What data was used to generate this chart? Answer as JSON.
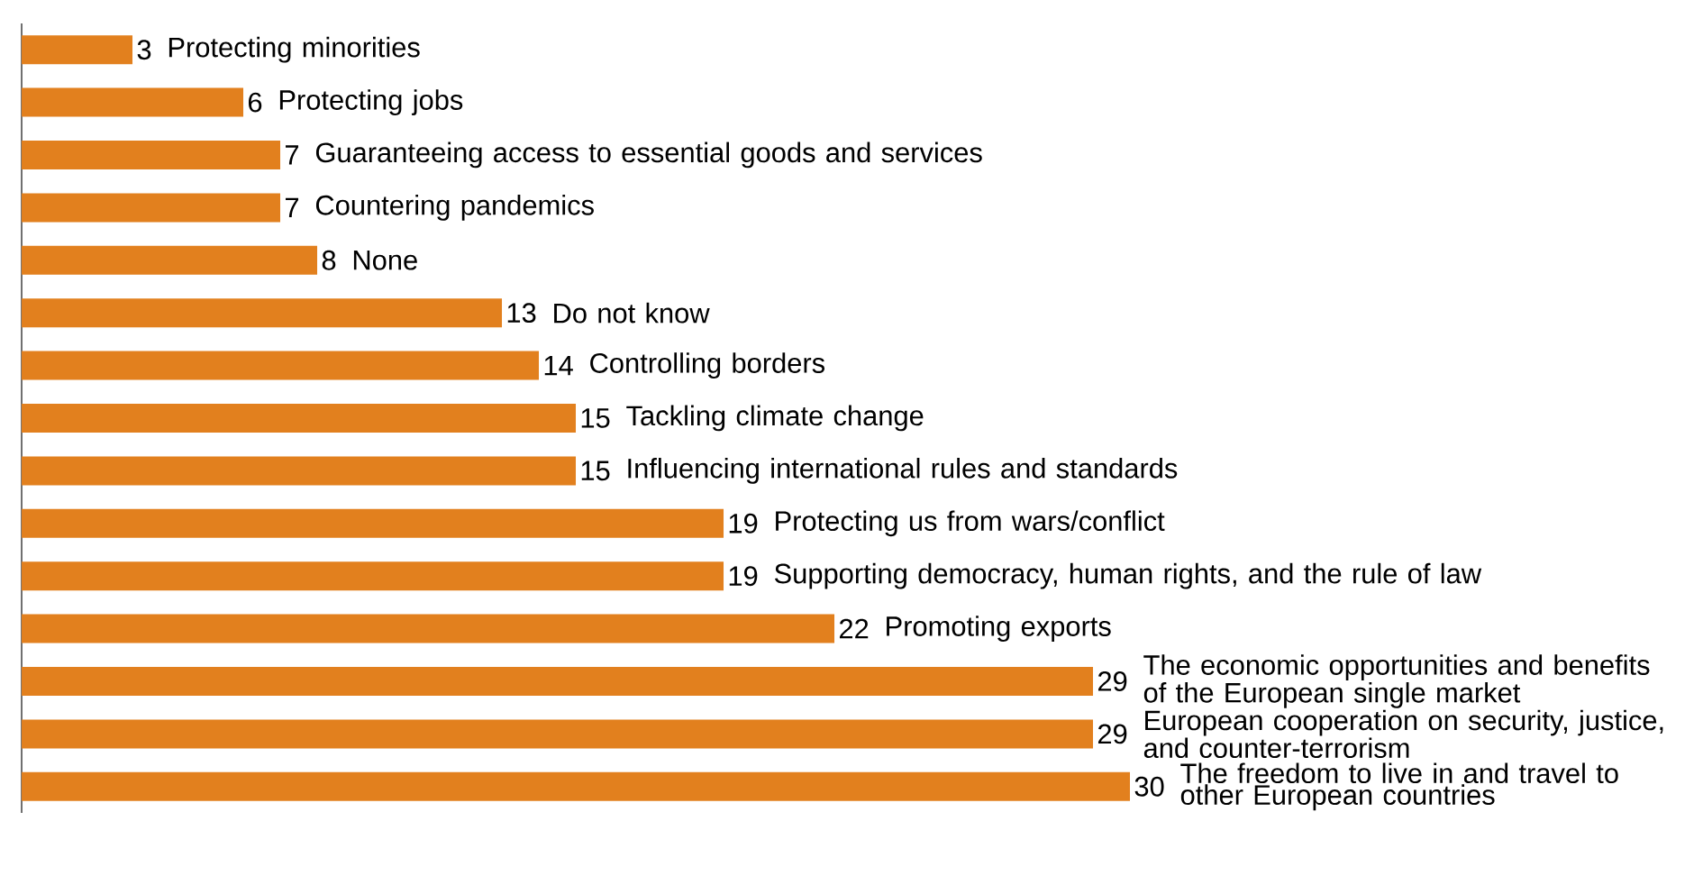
{
  "chart_data": {
    "type": "bar",
    "orientation": "horizontal",
    "categories": [
      "Protecting minorities",
      "Protecting jobs",
      "Guaranteeing access to essential goods and services",
      "Countering pandemics",
      "None",
      "Do not know",
      "Controlling borders",
      "Tackling climate change",
      "Influencing international rules and standards",
      "Protecting us from wars/conflict",
      "Supporting democracy, human rights, and the rule of law",
      "Promoting exports",
      "The economic opportunities and benefits of the European single market",
      "European cooperation on security, justice, and counter-terrorism",
      "The freedom to live in and travel to other European countries"
    ],
    "values": [
      3,
      6,
      7,
      7,
      8,
      13,
      14,
      15,
      15,
      19,
      19,
      22,
      29,
      29,
      30
    ],
    "color": "#e2801e",
    "data_labels": true
  }
}
